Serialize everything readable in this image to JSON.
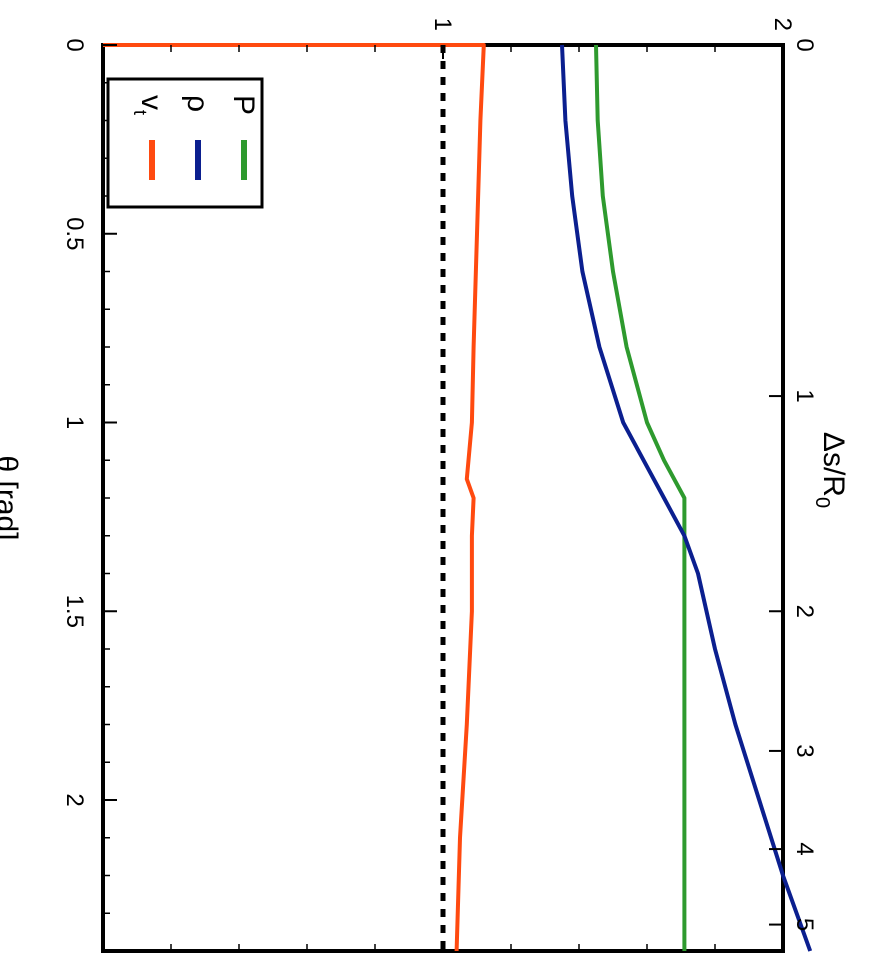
{
  "chart_data": {
    "type": "line",
    "orientation": "rotated 90 degrees clockwise",
    "xlabel": "θ [rad]",
    "x2label": "Δs/R",
    "x2label_sub": "0",
    "x_ticks": [
      "0",
      "0.5",
      "1",
      "1.5",
      "2"
    ],
    "x_tick_values": [
      0,
      0.5,
      1,
      1.5,
      2
    ],
    "x2_ticks": [
      "0",
      "1",
      "2",
      "3",
      "4",
      "5"
    ],
    "x2_tick_theta": [
      0,
      0.93,
      1.5,
      1.87,
      2.13,
      2.33
    ],
    "y_ticks": [
      "1",
      "2"
    ],
    "y_tick_values": [
      1,
      2
    ],
    "xlim": [
      0,
      2.4
    ],
    "ylim": [
      0,
      2
    ],
    "grid": false,
    "legend_position": "top-right",
    "legend": [
      {
        "label": "P",
        "color": "#2e9a2e"
      },
      {
        "label": "ρ",
        "color": "#0b1f8f"
      },
      {
        "label": "v",
        "sub": "t",
        "color": "#ff4a10"
      }
    ],
    "series": [
      {
        "name": "P",
        "color": "#2e9a2e",
        "x": [
          0,
          0.2,
          0.4,
          0.6,
          0.8,
          1.0,
          1.1,
          1.2,
          1.3,
          1.5,
          1.8,
          2.1,
          2.4
        ],
        "y": [
          1.45,
          1.455,
          1.47,
          1.5,
          1.54,
          1.6,
          1.65,
          1.71,
          1.71,
          1.71,
          1.71,
          1.71,
          1.71
        ]
      },
      {
        "name": "ρ",
        "color": "#0b1f8f",
        "x": [
          0,
          0.2,
          0.4,
          0.6,
          0.8,
          1.0,
          1.1,
          1.2,
          1.3,
          1.4,
          1.6,
          1.8,
          2.0,
          2.2,
          2.4
        ],
        "y": [
          1.35,
          1.36,
          1.38,
          1.41,
          1.46,
          1.53,
          1.59,
          1.65,
          1.71,
          1.75,
          1.8,
          1.86,
          1.93,
          2.0,
          2.08
        ]
      },
      {
        "name": "v_t",
        "color": "#ff4a10",
        "x": [
          0,
          0.0001,
          0.2,
          0.5,
          0.8,
          1.0,
          1.15,
          1.2,
          1.3,
          1.5,
          1.8,
          2.1,
          2.4
        ],
        "y": [
          0,
          1.12,
          1.11,
          1.1,
          1.09,
          1.085,
          1.07,
          1.09,
          1.085,
          1.085,
          1.07,
          1.05,
          1.04
        ]
      },
      {
        "name": "reference",
        "color": "#000000",
        "style": "dotted",
        "x": [
          0,
          2.4
        ],
        "y": [
          1,
          1
        ]
      }
    ]
  }
}
